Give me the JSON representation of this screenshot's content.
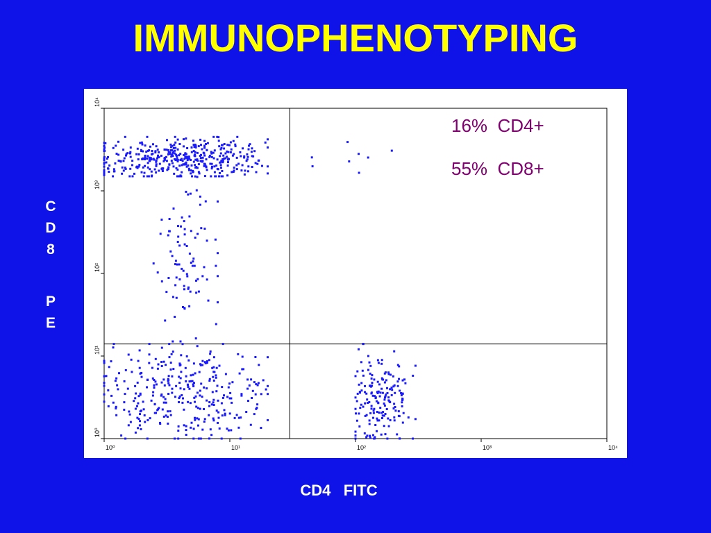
{
  "slide": {
    "title": "IMMUNOPHENOTYPING",
    "y_axis_letters": [
      "C",
      "D",
      "8",
      "P",
      "E"
    ],
    "x_axis_label": "CD4   FITC",
    "annotations": [
      "16%  CD4+",
      "55%  CD8+"
    ]
  },
  "colors": {
    "background": "#0f13e8",
    "title": "#ffff00",
    "axis_labels": "#ffffff",
    "annotation": "#800070",
    "points": "#1a1aff",
    "plot_background": "#ffffff"
  },
  "chart_data": {
    "type": "scatter",
    "title": "IMMUNOPHENOTYPING",
    "xlabel": "CD4   FITC",
    "ylabel": "CD8 PE",
    "x_scale": "log",
    "y_scale": "log",
    "xlim": [
      1,
      10000
    ],
    "ylim": [
      1,
      10000
    ],
    "x_ticks": [
      {
        "value": 1,
        "label": "10⁰"
      },
      {
        "value": 10,
        "label": "10¹"
      },
      {
        "value": 100,
        "label": "10²"
      },
      {
        "value": 1000,
        "label": "10³"
      },
      {
        "value": 10000,
        "label": "10⁴"
      }
    ],
    "y_ticks": [
      {
        "value": 1,
        "label": "10⁰"
      },
      {
        "value": 10,
        "label": "10¹"
      },
      {
        "value": 100,
        "label": "10²"
      },
      {
        "value": 1000,
        "label": "10³"
      },
      {
        "value": 10000,
        "label": "10⁴"
      }
    ],
    "quadrant_gates": {
      "x": 30,
      "y": 14
    },
    "annotations": [
      "16%  CD4+",
      "55%  CD8+"
    ],
    "clusters": [
      {
        "name": "CD4-CD8+ (upper left)",
        "approx_percent": 55,
        "x_range": [
          1,
          20
        ],
        "y_range": [
          1500,
          4500
        ],
        "center": [
          4,
          2500
        ],
        "point_count": 420
      },
      {
        "name": "CD4-CD8+ trailing",
        "approx_percent": 0,
        "x_range": [
          2,
          8
        ],
        "y_range": [
          15,
          1500
        ],
        "center": [
          4.5,
          150
        ],
        "point_count": 90
      },
      {
        "name": "CD4-CD8- (lower left)",
        "approx_percent": 0,
        "x_range": [
          1,
          20
        ],
        "y_range": [
          1,
          14
        ],
        "center": [
          4.5,
          3.5
        ],
        "point_count": 330
      },
      {
        "name": "CD4+CD8- (lower right)",
        "approx_percent": 16,
        "x_range": [
          100,
          300
        ],
        "y_range": [
          1,
          14
        ],
        "center": [
          160,
          3
        ],
        "point_count": 180
      },
      {
        "name": "CD4+CD8+ (upper right)",
        "approx_percent": 0,
        "x_range": [
          45,
          250
        ],
        "y_range": [
          1500,
          4500
        ],
        "center": [
          100,
          2500
        ],
        "point_count": 8
      }
    ],
    "grid": false,
    "legend": "none"
  }
}
